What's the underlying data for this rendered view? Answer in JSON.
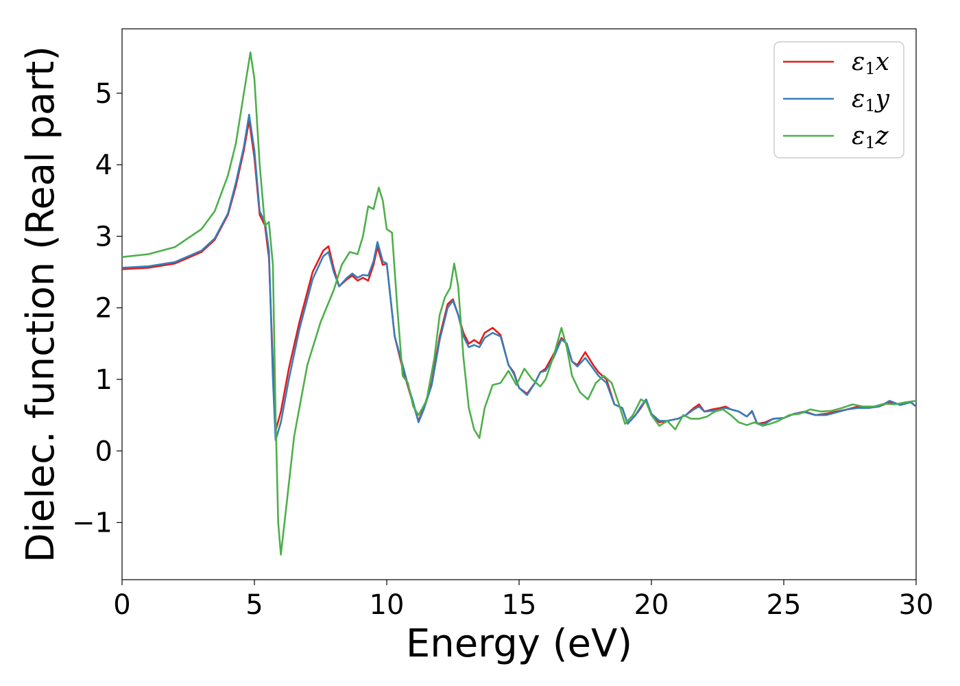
{
  "chart_data": {
    "type": "line",
    "title": "",
    "xlabel": "Energy (eV)",
    "ylabel": "Dielec. function (Real part)",
    "xlim": [
      0,
      30
    ],
    "ylim": [
      -1.8,
      5.9
    ],
    "xticks": [
      0,
      5,
      10,
      15,
      20,
      25,
      30
    ],
    "xtick_labels": [
      "0",
      "5",
      "10",
      "15",
      "20",
      "25",
      "30"
    ],
    "yticks": [
      -1,
      0,
      1,
      2,
      3,
      4,
      5
    ],
    "ytick_labels": [
      "−1",
      "0",
      "1",
      "2",
      "3",
      "4",
      "5"
    ],
    "grid": false,
    "legend_position": "top-right",
    "series": [
      {
        "name": "ε1x",
        "legend": {
          "base": "ε",
          "sub": "1",
          "suffix": "x"
        },
        "color": "#e41a1c",
        "x": [
          0,
          1,
          2,
          3,
          3.5,
          4,
          4.3,
          4.6,
          4.8,
          5.0,
          5.2,
          5.4,
          5.55,
          5.7,
          5.8,
          6.0,
          6.3,
          6.7,
          7.2,
          7.6,
          7.8,
          8.0,
          8.2,
          8.5,
          8.7,
          8.9,
          9.1,
          9.3,
          9.5,
          9.65,
          9.85,
          10.0,
          10.3,
          10.6,
          10.8,
          11.0,
          11.2,
          11.4,
          11.7,
          12.0,
          12.3,
          12.5,
          12.7,
          12.9,
          13.1,
          13.3,
          13.5,
          13.7,
          14.0,
          14.3,
          14.6,
          14.8,
          15.0,
          15.3,
          15.6,
          15.8,
          16.0,
          16.3,
          16.6,
          16.8,
          17.0,
          17.2,
          17.5,
          17.8,
          18.0,
          18.3,
          18.6,
          18.9,
          19.1,
          19.4,
          19.6,
          19.8,
          20.0,
          20.3,
          20.6,
          21.0,
          21.3,
          21.6,
          21.8,
          22.0,
          22.3,
          22.6,
          22.8,
          23.0,
          23.3,
          23.6,
          23.8,
          24.0,
          24.3,
          24.6,
          25.0,
          25.4,
          25.8,
          26.2,
          26.6,
          27.0,
          27.4,
          27.8,
          28.2,
          28.6,
          29.0,
          29.4,
          29.8,
          30.0
        ],
        "y": [
          2.54,
          2.56,
          2.62,
          2.78,
          2.95,
          3.3,
          3.7,
          4.2,
          4.62,
          4.1,
          3.3,
          3.15,
          2.7,
          1.2,
          0.28,
          0.55,
          1.15,
          1.8,
          2.5,
          2.8,
          2.86,
          2.55,
          2.3,
          2.4,
          2.45,
          2.38,
          2.42,
          2.38,
          2.6,
          2.85,
          2.6,
          2.62,
          1.6,
          1.15,
          0.9,
          0.65,
          0.42,
          0.6,
          0.95,
          1.6,
          2.05,
          2.12,
          1.9,
          1.65,
          1.5,
          1.55,
          1.5,
          1.65,
          1.72,
          1.62,
          1.2,
          1.1,
          0.88,
          0.8,
          0.95,
          1.1,
          1.15,
          1.35,
          1.58,
          1.5,
          1.25,
          1.2,
          1.38,
          1.2,
          1.1,
          1.0,
          0.65,
          0.6,
          0.38,
          0.5,
          0.6,
          0.72,
          0.5,
          0.4,
          0.42,
          0.45,
          0.5,
          0.6,
          0.65,
          0.55,
          0.58,
          0.6,
          0.62,
          0.58,
          0.55,
          0.48,
          0.55,
          0.38,
          0.4,
          0.45,
          0.46,
          0.52,
          0.55,
          0.5,
          0.52,
          0.55,
          0.58,
          0.62,
          0.6,
          0.62,
          0.68,
          0.65,
          0.68,
          0.62
        ]
      },
      {
        "name": "ε1y",
        "legend": {
          "base": "ε",
          "sub": "1",
          "suffix": "y"
        },
        "color": "#377eb8",
        "x": [
          0,
          1,
          2,
          3,
          3.5,
          4,
          4.3,
          4.6,
          4.8,
          5.0,
          5.2,
          5.4,
          5.55,
          5.7,
          5.8,
          6.0,
          6.3,
          6.7,
          7.2,
          7.6,
          7.8,
          8.0,
          8.2,
          8.5,
          8.7,
          8.9,
          9.1,
          9.3,
          9.5,
          9.65,
          9.85,
          10.0,
          10.3,
          10.6,
          10.8,
          11.0,
          11.2,
          11.4,
          11.7,
          12.0,
          12.3,
          12.5,
          12.7,
          12.9,
          13.1,
          13.3,
          13.5,
          13.7,
          14.0,
          14.3,
          14.6,
          14.8,
          15.0,
          15.3,
          15.6,
          15.8,
          16.0,
          16.3,
          16.6,
          16.8,
          17.0,
          17.2,
          17.5,
          17.8,
          18.0,
          18.3,
          18.6,
          18.9,
          19.1,
          19.4,
          19.6,
          19.8,
          20.0,
          20.3,
          20.6,
          21.0,
          21.3,
          21.6,
          21.8,
          22.0,
          22.3,
          22.6,
          22.8,
          23.0,
          23.3,
          23.6,
          23.8,
          24.0,
          24.3,
          24.6,
          25.0,
          25.4,
          25.8,
          26.2,
          26.6,
          27.0,
          27.4,
          27.8,
          28.2,
          28.6,
          29.0,
          29.4,
          29.8,
          30.0
        ],
        "y": [
          2.56,
          2.58,
          2.64,
          2.8,
          2.97,
          3.32,
          3.75,
          4.25,
          4.7,
          4.2,
          3.35,
          3.2,
          2.8,
          1.0,
          0.15,
          0.4,
          1.0,
          1.7,
          2.4,
          2.72,
          2.78,
          2.5,
          2.3,
          2.42,
          2.48,
          2.42,
          2.46,
          2.45,
          2.65,
          2.92,
          2.65,
          2.62,
          1.6,
          1.2,
          0.92,
          0.68,
          0.4,
          0.58,
          0.92,
          1.55,
          2.0,
          2.1,
          1.9,
          1.6,
          1.45,
          1.48,
          1.45,
          1.58,
          1.65,
          1.6,
          1.2,
          1.08,
          0.88,
          0.78,
          0.95,
          1.1,
          1.12,
          1.3,
          1.56,
          1.5,
          1.25,
          1.18,
          1.3,
          1.15,
          1.05,
          0.95,
          0.65,
          0.6,
          0.38,
          0.5,
          0.62,
          0.72,
          0.52,
          0.42,
          0.42,
          0.45,
          0.5,
          0.58,
          0.62,
          0.55,
          0.56,
          0.58,
          0.6,
          0.58,
          0.55,
          0.48,
          0.56,
          0.38,
          0.38,
          0.45,
          0.46,
          0.52,
          0.54,
          0.5,
          0.5,
          0.54,
          0.58,
          0.6,
          0.6,
          0.62,
          0.7,
          0.64,
          0.68,
          0.62
        ]
      },
      {
        "name": "ε1z",
        "legend": {
          "base": "ε",
          "sub": "1",
          "suffix": "z"
        },
        "color": "#4daf4a",
        "x": [
          0,
          1,
          2,
          3,
          3.5,
          4,
          4.3,
          4.6,
          4.85,
          5.0,
          5.2,
          5.4,
          5.55,
          5.7,
          5.8,
          5.9,
          6.0,
          6.2,
          6.5,
          7.0,
          7.5,
          8.0,
          8.3,
          8.6,
          8.9,
          9.1,
          9.3,
          9.5,
          9.7,
          9.85,
          10.0,
          10.2,
          10.4,
          10.6,
          10.8,
          11.0,
          11.2,
          11.5,
          11.8,
          12.0,
          12.2,
          12.4,
          12.55,
          12.7,
          12.9,
          13.1,
          13.3,
          13.5,
          13.7,
          14.0,
          14.3,
          14.6,
          14.9,
          15.2,
          15.5,
          15.8,
          16.0,
          16.3,
          16.6,
          16.8,
          17.0,
          17.3,
          17.6,
          17.9,
          18.2,
          18.5,
          18.8,
          19.0,
          19.3,
          19.6,
          19.8,
          20.0,
          20.3,
          20.6,
          20.9,
          21.2,
          21.5,
          21.8,
          22.1,
          22.4,
          22.7,
          23.0,
          23.3,
          23.6,
          23.9,
          24.2,
          24.5,
          24.8,
          25.2,
          25.6,
          26.0,
          26.4,
          26.8,
          27.2,
          27.6,
          28.0,
          28.4,
          28.8,
          29.2,
          29.6,
          30.0
        ],
        "y": [
          2.71,
          2.75,
          2.85,
          3.1,
          3.35,
          3.85,
          4.3,
          5.0,
          5.57,
          5.2,
          4.0,
          3.15,
          3.2,
          2.6,
          0.5,
          -1.0,
          -1.45,
          -0.8,
          0.2,
          1.2,
          1.8,
          2.25,
          2.6,
          2.78,
          2.75,
          3.0,
          3.42,
          3.38,
          3.68,
          3.5,
          3.1,
          3.05,
          2.0,
          1.05,
          0.95,
          0.62,
          0.5,
          0.7,
          1.3,
          1.9,
          2.15,
          2.28,
          2.62,
          2.3,
          1.3,
          0.6,
          0.3,
          0.18,
          0.6,
          0.92,
          0.95,
          1.12,
          0.92,
          1.15,
          1.0,
          0.9,
          1.0,
          1.32,
          1.72,
          1.45,
          1.05,
          0.82,
          0.72,
          0.95,
          1.05,
          0.95,
          0.62,
          0.38,
          0.5,
          0.72,
          0.68,
          0.5,
          0.35,
          0.42,
          0.3,
          0.5,
          0.45,
          0.45,
          0.48,
          0.55,
          0.58,
          0.5,
          0.4,
          0.36,
          0.4,
          0.35,
          0.38,
          0.42,
          0.5,
          0.52,
          0.58,
          0.55,
          0.56,
          0.6,
          0.65,
          0.62,
          0.62,
          0.66,
          0.65,
          0.68,
          0.7
        ]
      }
    ]
  }
}
